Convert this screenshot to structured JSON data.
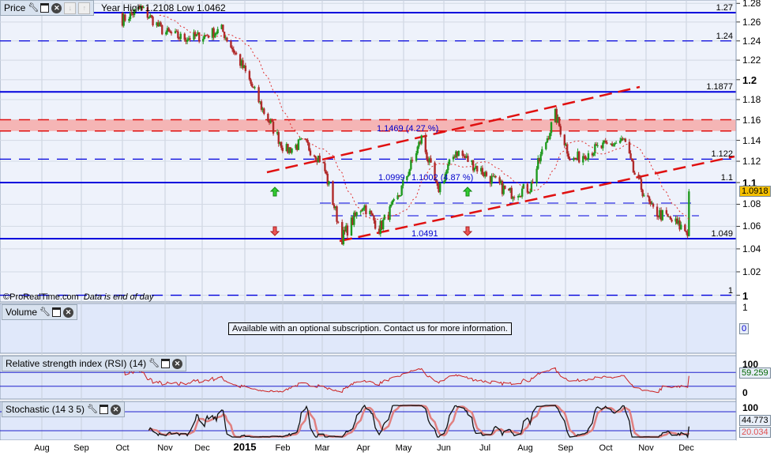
{
  "price_panel": {
    "title": "Price",
    "year_range": "Year High 1.2108 Low 1.0462",
    "watermark": "©ProRealTime.com",
    "data_note": "Data is end of day",
    "last_price": "1.0918",
    "level_labels": [
      {
        "value": 1.27,
        "text": "1.27",
        "style": "solid"
      },
      {
        "value": 1.24,
        "text": "1.24",
        "style": "dashed"
      },
      {
        "value": 1.1877,
        "text": "1.1877",
        "style": "solid"
      },
      {
        "value": 1.122,
        "text": "1.122",
        "style": "dashed"
      },
      {
        "value": 1.1,
        "text": "1.1",
        "style": "solid"
      },
      {
        "value": 1.049,
        "text": "1.049",
        "style": "solid"
      },
      {
        "value": 1.0,
        "text": "1",
        "style": "dashed"
      }
    ],
    "annotations": [
      "1.1469 (4.27 %)",
      "1.0999",
      "1.1002 (4.87 %)",
      "1.0491"
    ],
    "resistance_band": [
      1.149,
      1.16
    ]
  },
  "volume_panel": {
    "title": "Volume",
    "notice": "Available with an optional subscription. Contact us for more information.",
    "axis": [
      "1",
      "0"
    ]
  },
  "rsi_panel": {
    "title": "Relative strength index (RSI) (14)",
    "value": "59.259",
    "axis": [
      "100",
      "0"
    ]
  },
  "stoch_panel": {
    "title": "Stochastic (14 3 5)",
    "k_value": "44.773",
    "d_value": "20.034",
    "axis": [
      "100"
    ]
  },
  "colors": {
    "up": "#1f9a1f",
    "down": "#b02a2a",
    "level": "#0000dd",
    "channel": "#e01010",
    "band": "#f5b5b5",
    "last_price_bg": "#f5c000"
  },
  "chart_data": {
    "type": "candlestick",
    "scale": "log",
    "ylim": [
      1.0,
      1.28
    ],
    "yticks": [
      "1.28",
      "1.26",
      "1.24",
      "1.22",
      "1.2",
      "1.18",
      "1.16",
      "1.14",
      "1.12",
      "1.1",
      "1.08",
      "1.06",
      "1.04",
      "1.02",
      "1"
    ],
    "xticks": [
      "Aug",
      "Sep",
      "Oct",
      "Nov",
      "Dec",
      "2015",
      "Feb",
      "Mar",
      "Apr",
      "May",
      "Jun",
      "Jul",
      "Aug",
      "Sep",
      "Oct",
      "Nov",
      "Dec"
    ],
    "closes": [
      [
        "2014-10-01",
        1.262
      ],
      [
        "2014-10-15",
        1.275
      ],
      [
        "2014-11-01",
        1.25
      ],
      [
        "2014-11-15",
        1.243
      ],
      [
        "2014-12-01",
        1.245
      ],
      [
        "2014-12-15",
        1.252
      ],
      [
        "2015-01-01",
        1.21
      ],
      [
        "2015-01-15",
        1.17
      ],
      [
        "2015-02-01",
        1.13
      ],
      [
        "2015-02-15",
        1.138
      ],
      [
        "2015-03-01",
        1.12
      ],
      [
        "2015-03-16",
        1.05
      ],
      [
        "2015-04-01",
        1.08
      ],
      [
        "2015-04-13",
        1.058
      ],
      [
        "2015-04-27",
        1.085
      ],
      [
        "2015-05-15",
        1.142
      ],
      [
        "2015-05-27",
        1.092
      ],
      [
        "2015-06-10",
        1.13
      ],
      [
        "2015-06-30",
        1.11
      ],
      [
        "2015-07-20",
        1.09
      ],
      [
        "2015-08-05",
        1.095
      ],
      [
        "2015-08-24",
        1.165
      ],
      [
        "2015-09-05",
        1.12
      ],
      [
        "2015-09-20",
        1.13
      ],
      [
        "2015-10-15",
        1.14
      ],
      [
        "2015-10-22",
        1.11
      ],
      [
        "2015-11-05",
        1.075
      ],
      [
        "2015-11-20",
        1.065
      ],
      [
        "2015-12-02",
        1.055
      ],
      [
        "2015-12-03",
        1.0918
      ]
    ]
  }
}
